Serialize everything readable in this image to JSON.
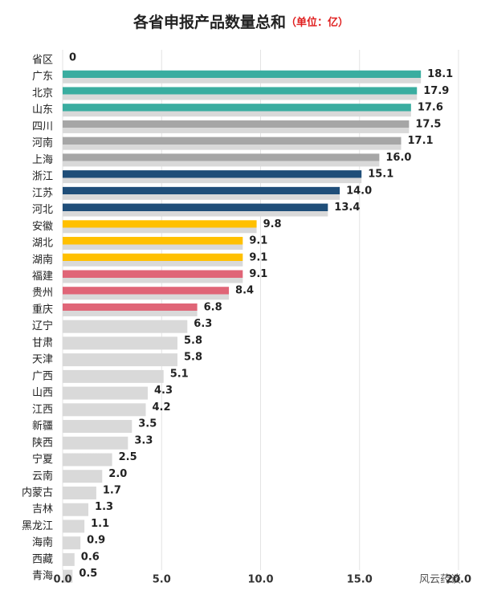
{
  "chart_data": {
    "type": "bar",
    "orientation": "horizontal",
    "title": "各省申报产品数量总和",
    "subtitle": "（单位：亿）",
    "categories": [
      "省区",
      "广东",
      "北京",
      "山东",
      "四川",
      "河南",
      "上海",
      "浙江",
      "江苏",
      "河北",
      "安徽",
      "湖北",
      "湖南",
      "福建",
      "贵州",
      "重庆",
      "辽宁",
      "甘肃",
      "天津",
      "广西",
      "山西",
      "江西",
      "新疆",
      "陕西",
      "宁夏",
      "云南",
      "内蒙古",
      "吉林",
      "黑龙江",
      "海南",
      "西藏",
      "青海"
    ],
    "values": [
      0,
      18.1,
      17.9,
      17.6,
      17.5,
      17.1,
      16.0,
      15.1,
      14.0,
      13.4,
      9.8,
      9.1,
      9.1,
      9.1,
      8.4,
      6.8,
      6.3,
      5.8,
      5.8,
      5.1,
      4.3,
      4.2,
      3.5,
      3.3,
      2.5,
      2.0,
      1.7,
      1.3,
      1.1,
      0.9,
      0.6,
      0.5
    ],
    "value_labels": [
      "0",
      "18.1",
      "17.9",
      "17.6",
      "17.5",
      "17.1",
      "16.0",
      "15.1",
      "14.0",
      "13.4",
      "9.8",
      "9.1",
      "9.1",
      "9.1",
      "8.4",
      "6.8",
      "6.3",
      "5.8",
      "5.8",
      "5.1",
      "4.3",
      "4.2",
      "3.5",
      "3.3",
      "2.5",
      "2.0",
      "1.7",
      "1.3",
      "1.1",
      "0.9",
      "0.6",
      "0.5"
    ],
    "colors": [
      "#d9d9d9",
      "#3aada0",
      "#3aada0",
      "#3aada0",
      "#a6a6a6",
      "#a6a6a6",
      "#a6a6a6",
      "#1f4e79",
      "#1f4e79",
      "#1f4e79",
      "#ffc000",
      "#ffc000",
      "#ffc000",
      "#e06577",
      "#e06577",
      "#e06577",
      "#d9d9d9",
      "#d9d9d9",
      "#d9d9d9",
      "#d9d9d9",
      "#d9d9d9",
      "#d9d9d9",
      "#d9d9d9",
      "#d9d9d9",
      "#d9d9d9",
      "#d9d9d9",
      "#d9d9d9",
      "#d9d9d9",
      "#d9d9d9",
      "#d9d9d9",
      "#d9d9d9",
      "#d9d9d9"
    ],
    "xlim": [
      0,
      20
    ],
    "xticks": [
      {
        "value": 0,
        "label": "0.0"
      },
      {
        "value": 5,
        "label": "5.0"
      },
      {
        "value": 10,
        "label": "10.0"
      },
      {
        "value": 15,
        "label": "15.0"
      },
      {
        "value": 20,
        "label": "20.0"
      }
    ],
    "grid": true,
    "watermark": "风云药谈"
  }
}
